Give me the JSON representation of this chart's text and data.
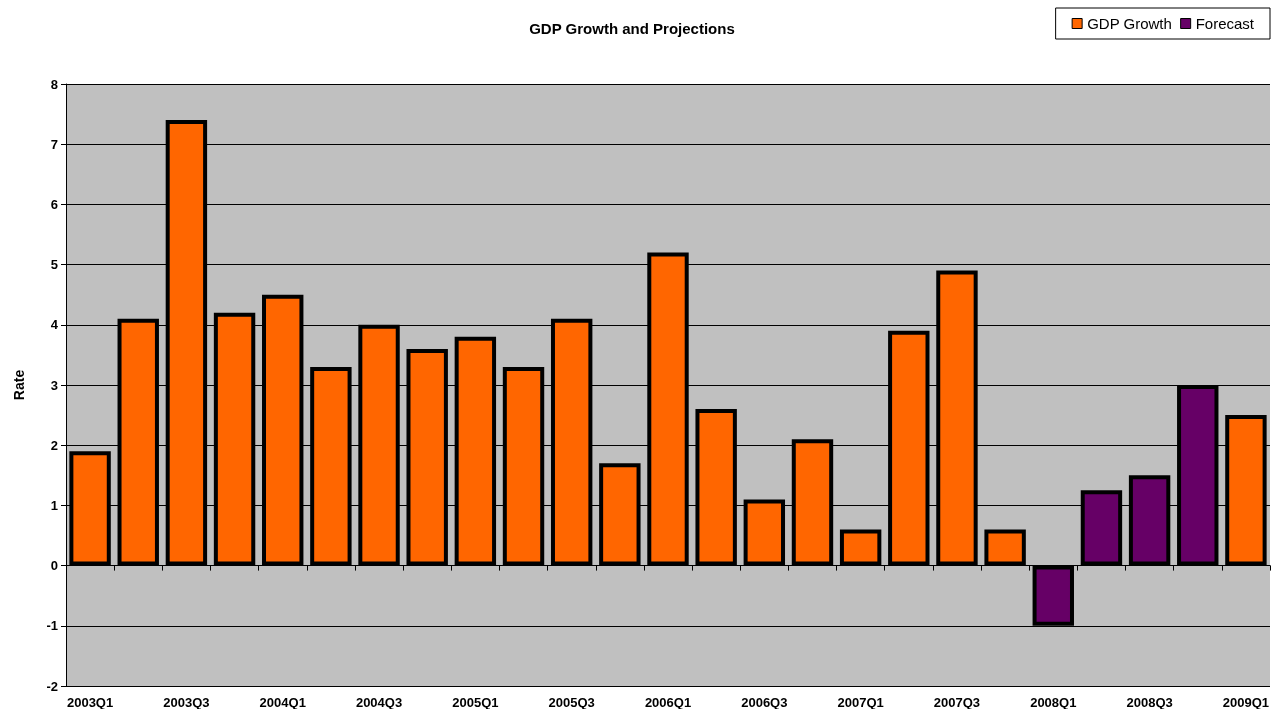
{
  "chart_data": {
    "type": "bar",
    "title": "GDP Growth and Projections",
    "ylabel": "Rate",
    "categories": [
      "2003Q1",
      null,
      "2003Q3",
      null,
      "2004Q1",
      null,
      "2004Q3",
      null,
      "2005Q1",
      null,
      "2005Q3",
      null,
      "2006Q1",
      null,
      "2006Q3",
      null,
      "2007Q1",
      null,
      "2007Q3",
      null,
      "2008Q1",
      null,
      "2008Q3",
      null,
      "2009Q1"
    ],
    "series": [
      {
        "name": "GDP Growth",
        "color": "#ff6600",
        "values": [
          1.9,
          4.1,
          7.4,
          4.2,
          4.5,
          3.3,
          4.0,
          3.6,
          3.8,
          3.3,
          4.1,
          1.7,
          5.2,
          2.6,
          1.1,
          2.1,
          0.6,
          3.9,
          4.9,
          0.6,
          null,
          null,
          null,
          null,
          2.5
        ]
      },
      {
        "name": "Forecast",
        "color": "#660066",
        "values": [
          null,
          null,
          null,
          null,
          null,
          null,
          null,
          null,
          null,
          null,
          null,
          null,
          null,
          null,
          null,
          null,
          null,
          null,
          null,
          null,
          -1.0,
          1.25,
          1.5,
          3.0,
          null
        ]
      }
    ],
    "ylim": [
      -2,
      8
    ],
    "yticks": [
      -2,
      -1,
      0,
      1,
      2,
      3,
      4,
      5,
      6,
      7,
      8
    ],
    "grid": "y",
    "legend": "top right"
  }
}
